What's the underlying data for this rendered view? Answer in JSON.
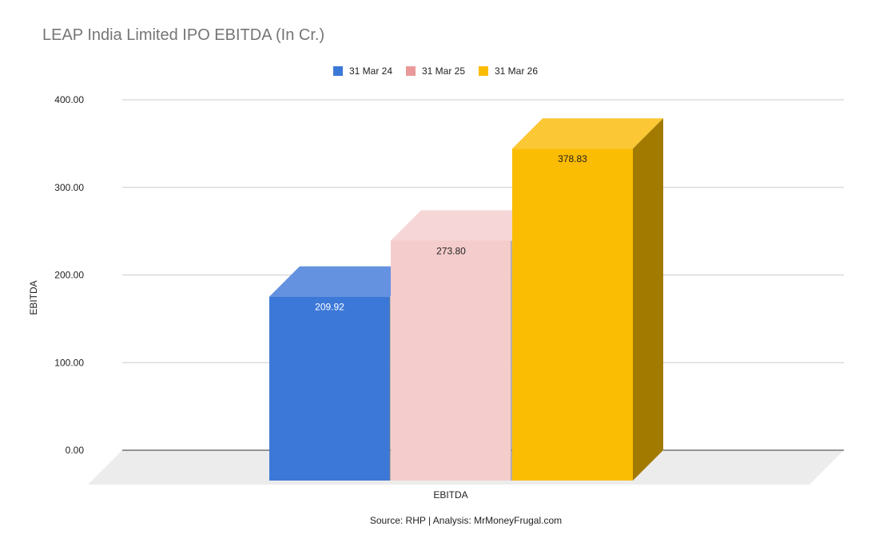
{
  "chart_data": {
    "type": "bar",
    "title": "LEAP India Limited IPO EBITDA (In Cr.)",
    "categories": [
      "EBITDA"
    ],
    "series": [
      {
        "name": "31 Mar 24",
        "values": [
          209.92
        ],
        "label": "209.92",
        "color": "#3c78d8",
        "top_color": "#6592e0",
        "side_color": "#2c5aa3",
        "label_color": "#ffffff"
      },
      {
        "name": "31 Mar 25",
        "values": [
          273.8
        ],
        "label": "273.80",
        "color": "#f4cccc",
        "top_color": "#f6d6d6",
        "side_color": "#c9a3a3",
        "label_color": "#222222"
      },
      {
        "name": "31 Mar 26",
        "values": [
          378.83
        ],
        "label": "378.83",
        "color": "#fbbc04",
        "top_color": "#fbc734",
        "side_color": "#a37a00",
        "label_color": "#222222"
      }
    ],
    "xlabel": "EBITDA",
    "ylabel": "EBITDA",
    "ylim": [
      0,
      400
    ],
    "yticks": [
      "0.00",
      "100.00",
      "200.00",
      "300.00",
      "400.00"
    ],
    "grid": true,
    "legend_position": "top",
    "source_note": "Source: RHP | Analysis: MrMoneyFrugal.com",
    "colors": {
      "gridline": "#cccccc",
      "baseline": "#333333",
      "floor": "#ececec"
    }
  }
}
